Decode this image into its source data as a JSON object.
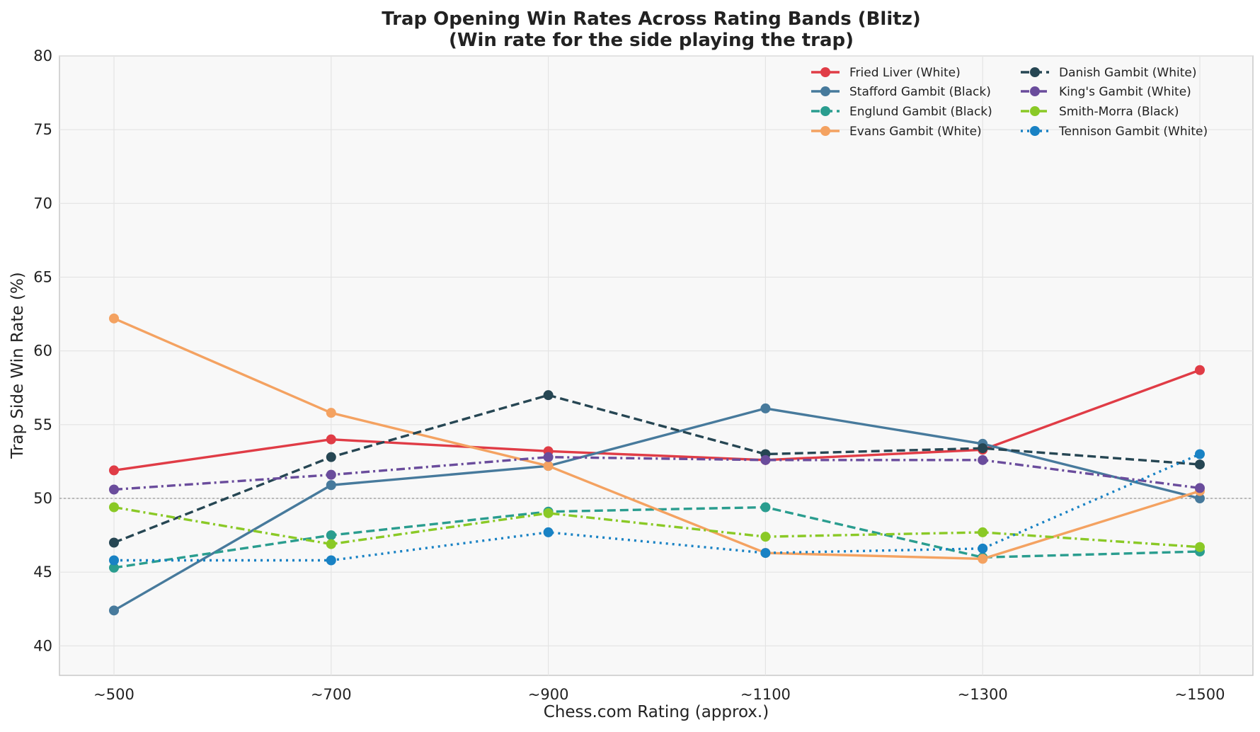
{
  "chart_data": {
    "type": "line",
    "title": "Trap Opening Win Rates Across Rating Bands (Blitz)",
    "subtitle": "(Win rate for the side playing the trap)",
    "xlabel": "Chess.com Rating (approx.)",
    "ylabel": "Trap Side Win Rate (%)",
    "categories": [
      "~500",
      "~700",
      "~900",
      "~1100",
      "~1300",
      "~1500"
    ],
    "ylim": [
      38,
      80
    ],
    "yticks": [
      40,
      45,
      50,
      55,
      60,
      65,
      70,
      75,
      80
    ],
    "grid": true,
    "reference_line": 50,
    "legend_position": "top-right",
    "series": [
      {
        "name": "Fried Liver (White)",
        "color": "#e03c46",
        "dash": "solid",
        "values": [
          51.9,
          54.0,
          53.2,
          52.6,
          53.3,
          58.7
        ]
      },
      {
        "name": "Stafford Gambit (Black)",
        "color": "#477a9c",
        "dash": "solid",
        "values": [
          42.4,
          50.9,
          52.2,
          56.1,
          53.7,
          50.0
        ]
      },
      {
        "name": "Englund Gambit (Black)",
        "color": "#2a9d8f",
        "dash": "dashed",
        "values": [
          45.3,
          47.5,
          49.1,
          49.4,
          46.0,
          46.4
        ]
      },
      {
        "name": "Evans Gambit (White)",
        "color": "#f4a261",
        "dash": "solid",
        "values": [
          62.2,
          55.8,
          52.2,
          46.3,
          45.9,
          50.5
        ]
      },
      {
        "name": "Danish Gambit (White)",
        "color": "#264653",
        "dash": "dashed",
        "values": [
          47.0,
          52.8,
          57.0,
          53.0,
          53.4,
          52.3
        ]
      },
      {
        "name": "King's Gambit (White)",
        "color": "#6a4c9c",
        "dash": "dashdot",
        "values": [
          50.6,
          51.6,
          52.8,
          52.6,
          52.6,
          50.7
        ]
      },
      {
        "name": "Smith-Morra (Black)",
        "color": "#8ac926",
        "dash": "dashdot",
        "values": [
          49.4,
          46.9,
          49.0,
          47.4,
          47.7,
          46.7
        ]
      },
      {
        "name": "Tennison Gambit (White)",
        "color": "#1982c4",
        "dash": "dotted",
        "values": [
          45.8,
          45.8,
          47.7,
          46.3,
          46.6,
          53.0
        ]
      }
    ]
  }
}
